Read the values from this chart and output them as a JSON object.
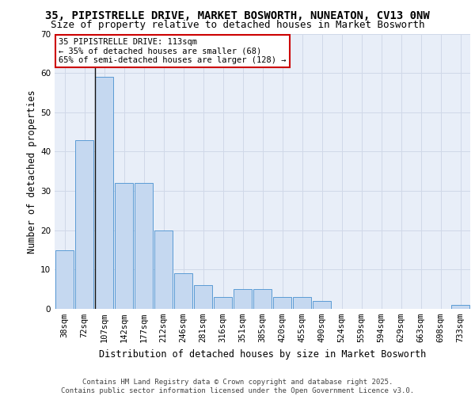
{
  "title_line1": "35, PIPISTRELLE DRIVE, MARKET BOSWORTH, NUNEATON, CV13 0NW",
  "title_line2": "Size of property relative to detached houses in Market Bosworth",
  "xlabel": "Distribution of detached houses by size in Market Bosworth",
  "ylabel": "Number of detached properties",
  "categories": [
    "38sqm",
    "72sqm",
    "107sqm",
    "142sqm",
    "177sqm",
    "212sqm",
    "246sqm",
    "281sqm",
    "316sqm",
    "351sqm",
    "385sqm",
    "420sqm",
    "455sqm",
    "490sqm",
    "524sqm",
    "559sqm",
    "594sqm",
    "629sqm",
    "663sqm",
    "698sqm",
    "733sqm"
  ],
  "values": [
    15,
    43,
    59,
    32,
    32,
    20,
    9,
    6,
    3,
    5,
    5,
    3,
    3,
    2,
    0,
    0,
    0,
    0,
    0,
    0,
    1
  ],
  "bar_color": "#c5d8f0",
  "bar_edge_color": "#5b9bd5",
  "highlight_line_bar_index": 2,
  "annotation_text_line1": "35 PIPISTRELLE DRIVE: 113sqm",
  "annotation_text_line2": "← 35% of detached houses are smaller (68)",
  "annotation_text_line3": "65% of semi-detached houses are larger (128) →",
  "annotation_box_color": "#ffffff",
  "annotation_box_edge_color": "#cc0000",
  "ylim": [
    0,
    70
  ],
  "yticks": [
    0,
    10,
    20,
    30,
    40,
    50,
    60,
    70
  ],
  "grid_color": "#d0d8e8",
  "background_color": "#e8eef8",
  "footer_text": "Contains HM Land Registry data © Crown copyright and database right 2025.\nContains public sector information licensed under the Open Government Licence v3.0.",
  "title_fontsize": 10,
  "subtitle_fontsize": 9,
  "axis_label_fontsize": 8.5,
  "tick_fontsize": 7.5,
  "annotation_fontsize": 7.5,
  "footer_fontsize": 6.5
}
